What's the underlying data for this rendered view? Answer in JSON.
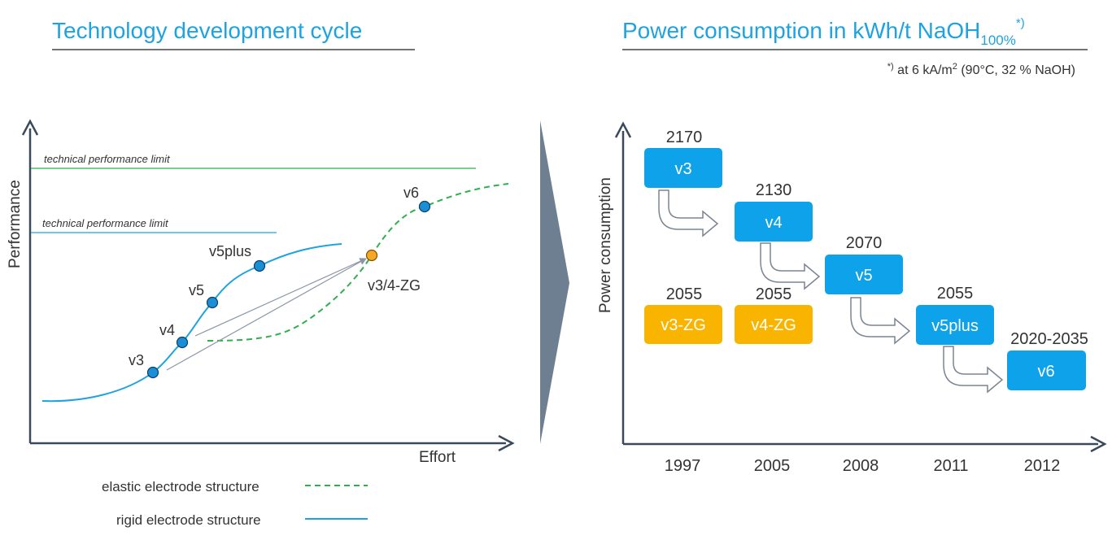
{
  "left_panel": {
    "title": "Technology development cycle",
    "y_axis_label": "Performance",
    "x_axis_label": "Effort",
    "limit_labels": [
      "technical performance limit",
      "technical performance limit"
    ],
    "points": [
      {
        "name": "v3",
        "series": "rigid"
      },
      {
        "name": "v4",
        "series": "rigid"
      },
      {
        "name": "v5",
        "series": "rigid"
      },
      {
        "name": "v5plus",
        "series": "rigid"
      },
      {
        "name": "v3/4-ZG",
        "series": "elastic"
      },
      {
        "name": "v6",
        "series": "elastic"
      }
    ],
    "legend": [
      {
        "label": "elastic electrode structure",
        "style": "dashed",
        "color": "#2eb04c"
      },
      {
        "label": "rigid electrode structure",
        "style": "solid",
        "color": "#1fa3e0"
      }
    ]
  },
  "right_panel": {
    "title_main": "Power consumption in kWh/t NaOH",
    "title_sub": "100%",
    "title_sup": "*)",
    "footnote_mark": "*)",
    "footnote_text": " at 6 kA/m",
    "footnote_exp": "2",
    "footnote_rest": " (90°C, 32 % NaOH)",
    "y_axis_label": "Power consumption"
  },
  "colors": {
    "blue": "#0da2ea",
    "orange": "#f9b400",
    "title": "#1fa3e0",
    "green": "#2eb04c",
    "dot_orange": "#f7a823",
    "arrow_panel": "#6e7f92"
  },
  "chart_data": [
    {
      "type": "line",
      "title": "Technology development cycle",
      "xlabel": "Effort",
      "ylabel": "Performance",
      "series": [
        {
          "name": "rigid electrode structure",
          "points": [
            "v3",
            "v4",
            "v5",
            "v5plus"
          ]
        },
        {
          "name": "elastic electrode structure",
          "points": [
            "v3/4-ZG",
            "v6"
          ]
        }
      ],
      "annotations": [
        "technical performance limit",
        "technical performance limit"
      ]
    },
    {
      "type": "bar",
      "title": "Power consumption in kWh/t NaOH100%",
      "ylabel": "Power consumption",
      "categories": [
        "1997",
        "2005",
        "2008",
        "2011",
        "2012"
      ],
      "series": [
        {
          "name": "blue",
          "items": [
            {
              "label": "v3",
              "value": "2170",
              "year": "1997"
            },
            {
              "label": "v4",
              "value": "2130",
              "year": "2005"
            },
            {
              "label": "v5",
              "value": "2070",
              "year": "2008"
            },
            {
              "label": "v5plus",
              "value": "2055",
              "year": "2011"
            },
            {
              "label": "v6",
              "value": "2020-2035",
              "year": "2012"
            }
          ]
        },
        {
          "name": "orange",
          "items": [
            {
              "label": "v3-ZG",
              "value": "2055",
              "year": "1997"
            },
            {
              "label": "v4-ZG",
              "value": "2055",
              "year": "2005"
            }
          ]
        }
      ]
    }
  ]
}
